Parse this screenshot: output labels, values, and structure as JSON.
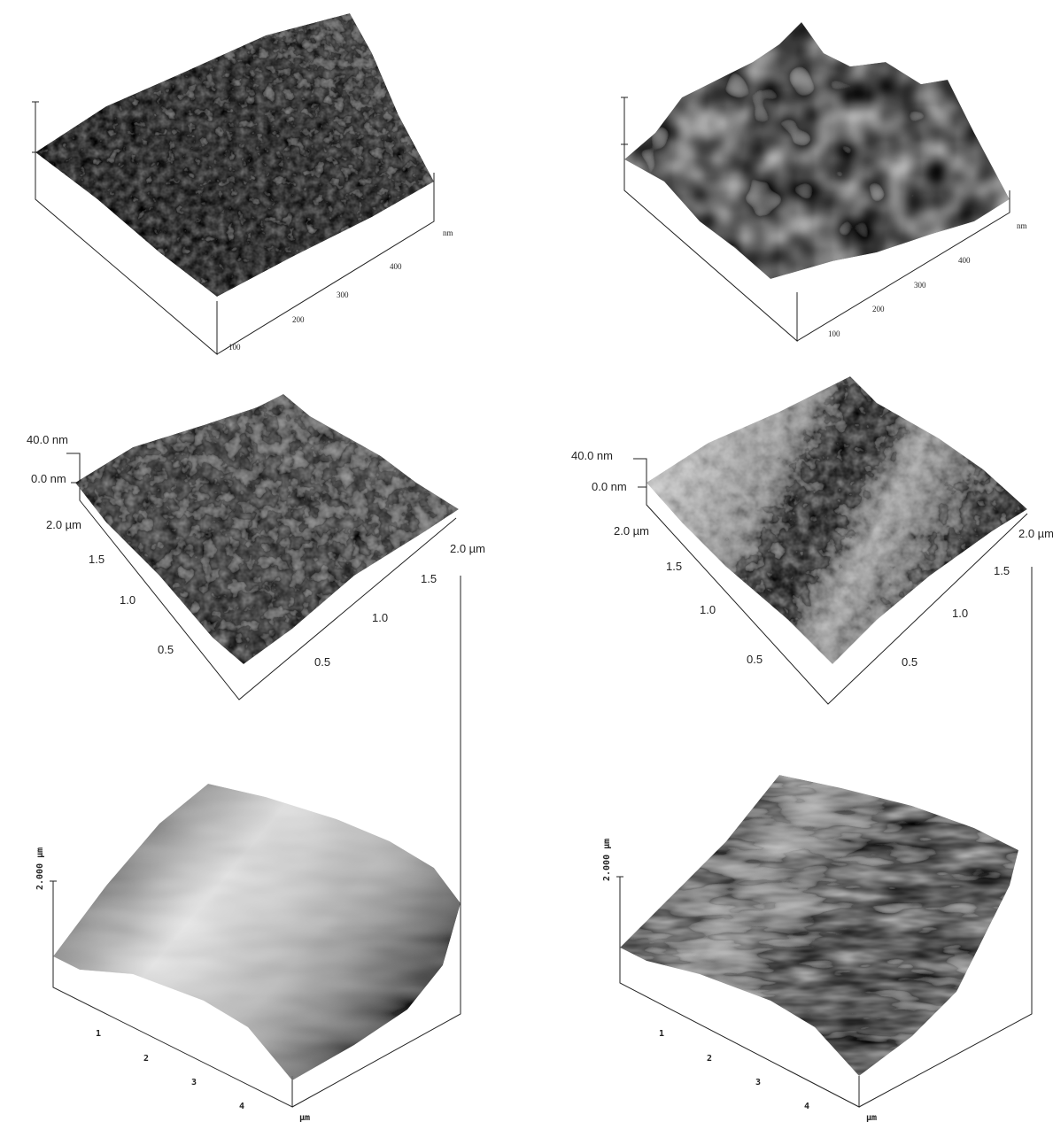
{
  "panels": [
    {
      "labels": [
        "nm",
        "100",
        "200",
        "300",
        "400"
      ]
    },
    {
      "labels": [
        "nm",
        "100",
        "200",
        "300",
        "400"
      ]
    },
    {
      "labels": [
        "40.0 nm",
        "0.0 nm",
        "2.0 µm",
        "1.5",
        "1.0",
        "0.5",
        "0.5",
        "1.0",
        "1.5",
        "2.0 µm"
      ]
    },
    {
      "labels": [
        "40.0 nm",
        "0.0 nm",
        "2.0 µm",
        "1.5",
        "1.0",
        "0.5",
        "0.5",
        "1.0",
        "1.5",
        "2.0 µm"
      ]
    },
    {
      "labels": [
        "2.000 µm",
        "1",
        "2",
        "3",
        "4",
        "µm"
      ]
    },
    {
      "labels": [
        "2.000 µm",
        "1",
        "2",
        "3",
        "4",
        "µm"
      ]
    }
  ]
}
